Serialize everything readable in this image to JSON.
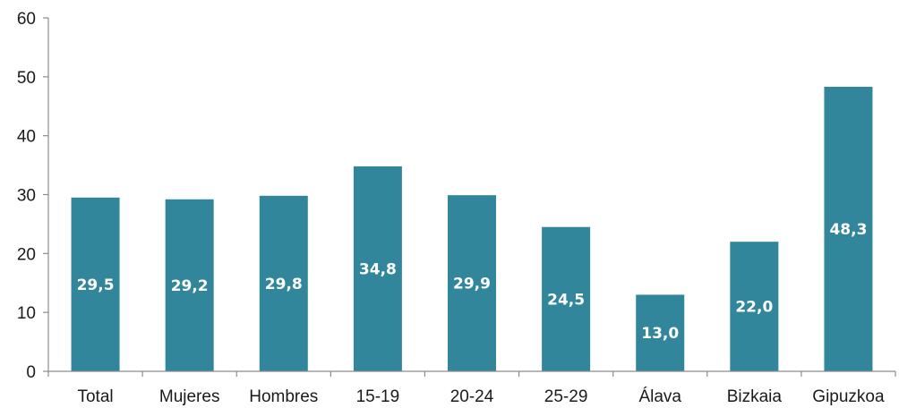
{
  "chart_data": {
    "type": "bar",
    "categories": [
      "Total",
      "Mujeres",
      "Hombres",
      "15-19",
      "20-24",
      "25-29",
      "Álava",
      "Bizkaia",
      "Gipuzkoa"
    ],
    "values": [
      29.5,
      29.2,
      29.8,
      34.8,
      29.9,
      24.5,
      13.0,
      22.0,
      48.3
    ],
    "value_labels": [
      "29,5",
      "29,2",
      "29,8",
      "34,8",
      "29,9",
      "24,5",
      "13,0",
      "22,0",
      "48,3"
    ],
    "ylim": [
      0,
      60
    ],
    "yticks": [
      "0",
      "10",
      "20",
      "30",
      "40",
      "50",
      "60"
    ],
    "title": "",
    "xlabel": "",
    "ylabel": "",
    "grid": false,
    "bar_color": "#31869b",
    "axis_color": "#8c8c8c"
  }
}
